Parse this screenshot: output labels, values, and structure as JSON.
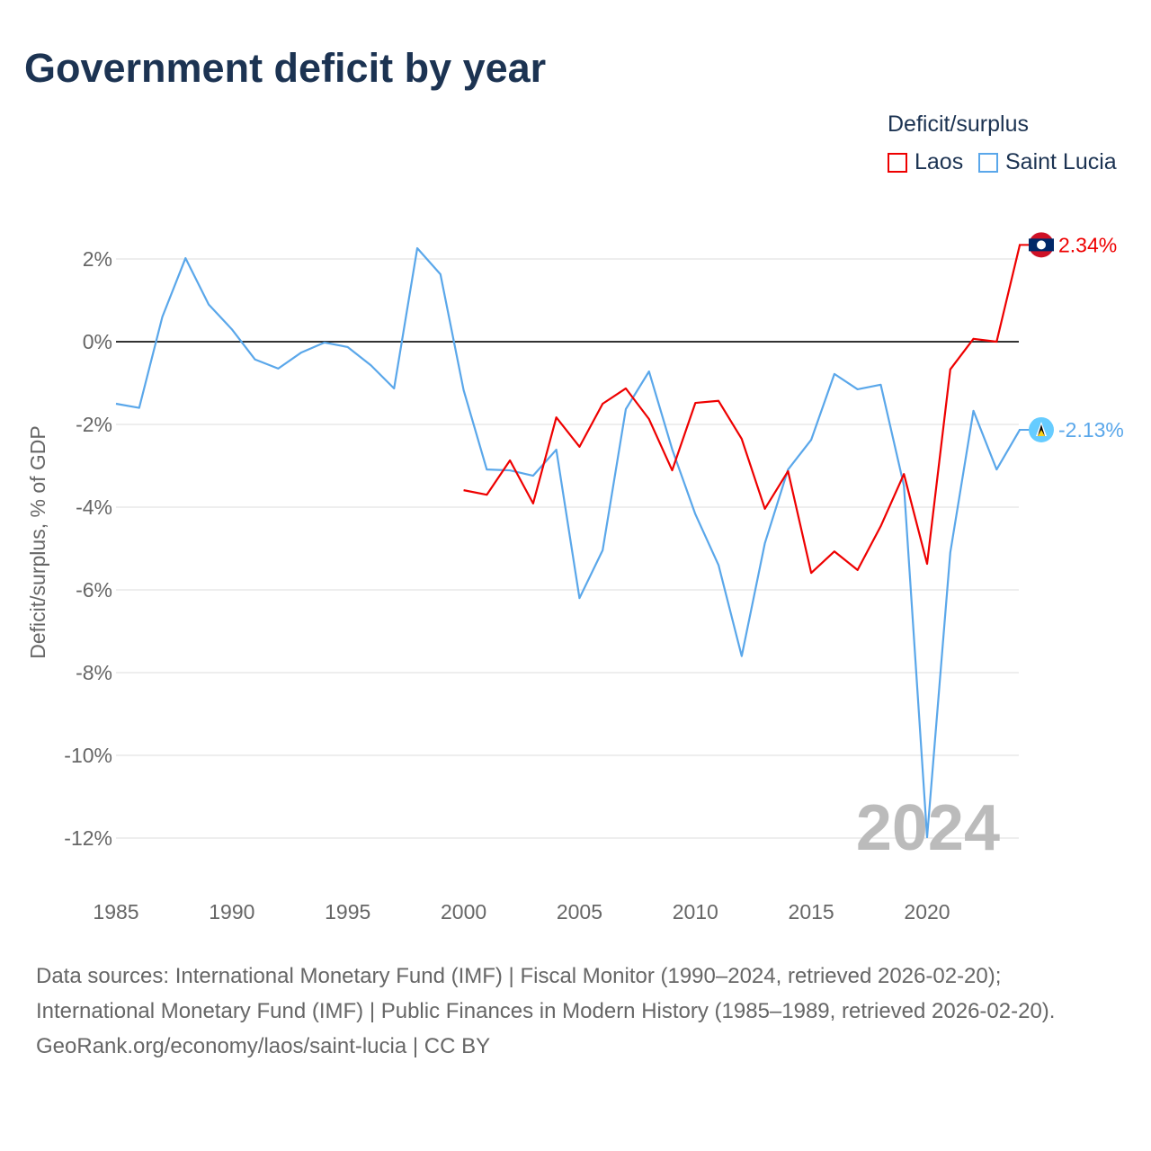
{
  "chart_data": {
    "type": "line",
    "title": "Government deficit by year",
    "ylabel": "Deficit/surplus, % of GDP",
    "xlabel": "",
    "legend_title": "Deficit/surplus",
    "legend_placement": "top-right",
    "xlim": [
      1985,
      2024
    ],
    "ylim": [
      -12,
      2
    ],
    "xticks": [
      "1985",
      "1990",
      "1995",
      "2000",
      "2005",
      "2010",
      "2015",
      "2020"
    ],
    "yticks": [
      "2%",
      "0%",
      "-2%",
      "-4%",
      "-6%",
      "-8%",
      "-10%",
      "-12%"
    ],
    "watermark_year": "2024",
    "series": [
      {
        "name": "Laos",
        "color": "#ee0000",
        "end_label": "2.34%",
        "flag_icon": "laos-flag-icon",
        "x": [
          2000,
          2001,
          2002,
          2003,
          2004,
          2005,
          2006,
          2007,
          2008,
          2009,
          2010,
          2011,
          2012,
          2013,
          2014,
          2015,
          2016,
          2017,
          2018,
          2019,
          2020,
          2021,
          2022,
          2023,
          2024
        ],
        "values": [
          -3.59,
          -3.7,
          -2.87,
          -3.91,
          -1.83,
          -2.54,
          -1.5,
          -1.13,
          -1.87,
          -3.11,
          -1.48,
          -1.43,
          -2.35,
          -4.04,
          -3.13,
          -5.59,
          -5.07,
          -5.52,
          -4.46,
          -3.2,
          -5.37,
          -0.67,
          0.07,
          0.0,
          2.34
        ]
      },
      {
        "name": "Saint Lucia",
        "color": "#5aa7ea",
        "end_label": "-2.13%",
        "flag_icon": "saint-lucia-flag-icon",
        "x": [
          1985,
          1986,
          1987,
          1988,
          1989,
          1990,
          1991,
          1992,
          1993,
          1994,
          1995,
          1996,
          1997,
          1998,
          1999,
          2000,
          2001,
          2002,
          2003,
          2004,
          2005,
          2006,
          2007,
          2008,
          2009,
          2010,
          2011,
          2012,
          2013,
          2014,
          2015,
          2016,
          2017,
          2018,
          2019,
          2020,
          2021,
          2022,
          2023,
          2024
        ],
        "values": [
          -1.5,
          -1.6,
          0.6,
          2.02,
          0.9,
          0.3,
          -0.43,
          -0.65,
          -0.26,
          -0.02,
          -0.13,
          -0.57,
          -1.13,
          2.26,
          1.63,
          -1.17,
          -3.09,
          -3.11,
          -3.24,
          -2.61,
          -6.2,
          -5.04,
          -1.63,
          -0.72,
          -2.6,
          -4.17,
          -5.4,
          -7.6,
          -4.87,
          -3.09,
          -2.37,
          -0.78,
          -1.15,
          -1.04,
          -3.48,
          -11.98,
          -5.1,
          -1.67,
          -3.09,
          -2.13
        ]
      }
    ]
  },
  "footer": {
    "sources": "Data sources: International Monetary Fund (IMF) | Fiscal Monitor (1990–2024, retrieved 2026-02-20); International Monetary Fund (IMF) | Public Finances in Modern History (1985–1989, retrieved 2026-02-20).",
    "credit": "GeoRank.org/economy/laos/saint-lucia | CC BY"
  }
}
